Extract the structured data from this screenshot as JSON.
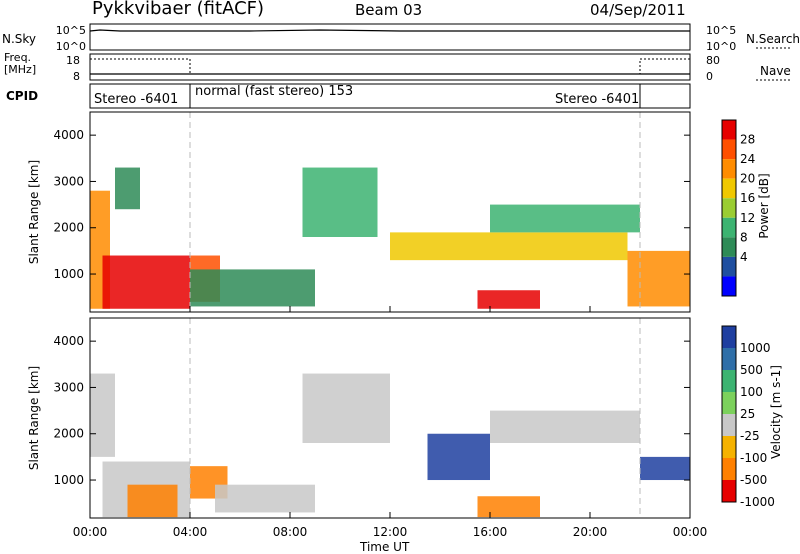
{
  "header": {
    "station": "Pykkvibaer (fitACF)",
    "beam": "Beam 03",
    "date": "04/Sep/2011"
  },
  "top_panels": {
    "nsky_label": "N.Sky",
    "nsky_ticks": [
      "10^5",
      "10^0"
    ],
    "nsearch_label": "N.Search",
    "nsearch_ticks": [
      "10^5",
      "10^0"
    ],
    "freq_label": "Freq.",
    "freq_unit": "[MHz]",
    "freq_ticks": [
      "18",
      "8"
    ],
    "nave_label": "Nave",
    "nave_ticks": [
      "80",
      "0"
    ],
    "cpid_label": "CPID",
    "cpid_segments": [
      "Stereo -6401",
      "normal (fast stereo) 153",
      "Stereo -6401"
    ]
  },
  "x_axis": {
    "label": "Time UT",
    "ticks": [
      "00:00",
      "04:00",
      "08:00",
      "12:00",
      "16:00",
      "20:00",
      "00:00"
    ]
  },
  "chart_data": [
    {
      "type": "heatmap",
      "panel": "power",
      "ylabel": "Slant Range [km]",
      "yticks": [
        "1000",
        "2000",
        "3000",
        "4000"
      ],
      "ylim": [
        180,
        4500
      ],
      "xlim": [
        0,
        24
      ],
      "colorbar_label": "Power [dB]",
      "colorbar_ticks": [
        "28",
        "24",
        "20",
        "16",
        "12",
        "8",
        "4"
      ],
      "colors": [
        "#e60000",
        "#ff5000",
        "#ff8c00",
        "#f0c800",
        "#9acd32",
        "#3cb371",
        "#2e8b57",
        "#1f4fa0",
        "#0000ff"
      ],
      "regions": [
        {
          "t0": 0.0,
          "t1": 0.8,
          "r0": 250,
          "r1": 2800,
          "level": 2
        },
        {
          "t0": 0.5,
          "t1": 4.0,
          "r0": 250,
          "r1": 1400,
          "level": 0
        },
        {
          "t0": 1.0,
          "t1": 2.0,
          "r0": 2400,
          "r1": 3300,
          "level": 6
        },
        {
          "t0": 4.0,
          "t1": 5.2,
          "r0": 400,
          "r1": 1400,
          "level": 1
        },
        {
          "t0": 4.0,
          "t1": 9.0,
          "r0": 300,
          "r1": 1100,
          "level": 6
        },
        {
          "t0": 8.5,
          "t1": 11.5,
          "r0": 1800,
          "r1": 3300,
          "level": 5
        },
        {
          "t0": 12.0,
          "t1": 21.5,
          "r0": 1300,
          "r1": 1900,
          "level": 3
        },
        {
          "t0": 15.5,
          "t1": 18.0,
          "r0": 250,
          "r1": 650,
          "level": 0
        },
        {
          "t0": 16.0,
          "t1": 22.0,
          "r0": 1900,
          "r1": 2500,
          "level": 5
        },
        {
          "t0": 21.5,
          "t1": 24.0,
          "r0": 300,
          "r1": 1500,
          "level": 2
        }
      ]
    },
    {
      "type": "heatmap",
      "panel": "velocity",
      "ylabel": "Slant Range [km]",
      "yticks": [
        "1000",
        "2000",
        "3000",
        "4000"
      ],
      "ylim": [
        180,
        4500
      ],
      "xlim": [
        0,
        24
      ],
      "colorbar_label": "Velocity [m s-1]",
      "colorbar_ticks": [
        "1000",
        "500",
        "100",
        "25",
        "-25",
        "-100",
        "-500",
        "-1000"
      ],
      "colors": [
        "#1f3fa0",
        "#2f6fa8",
        "#3cb371",
        "#7cd15c",
        "#c8c8c8",
        "#f5b200",
        "#ff8000",
        "#e60000"
      ],
      "regions": [
        {
          "t0": 0.0,
          "t1": 1.0,
          "r0": 1500,
          "r1": 3300,
          "level": 4
        },
        {
          "t0": 0.5,
          "t1": 4.0,
          "r0": 200,
          "r1": 1400,
          "level": 4
        },
        {
          "t0": 1.5,
          "t1": 3.5,
          "r0": 200,
          "r1": 900,
          "level": 6
        },
        {
          "t0": 4.0,
          "t1": 5.5,
          "r0": 600,
          "r1": 1300,
          "level": 6
        },
        {
          "t0": 5.0,
          "t1": 9.0,
          "r0": 300,
          "r1": 900,
          "level": 4
        },
        {
          "t0": 8.5,
          "t1": 12.0,
          "r0": 1800,
          "r1": 3300,
          "level": 4
        },
        {
          "t0": 13.5,
          "t1": 16.0,
          "r0": 1000,
          "r1": 2000,
          "level": 0
        },
        {
          "t0": 15.5,
          "t1": 18.0,
          "r0": 200,
          "r1": 650,
          "level": 6
        },
        {
          "t0": 16.0,
          "t1": 22.0,
          "r0": 1800,
          "r1": 2500,
          "level": 4
        },
        {
          "t0": 22.0,
          "t1": 24.0,
          "r0": 1000,
          "r1": 1500,
          "level": 0
        }
      ]
    }
  ]
}
